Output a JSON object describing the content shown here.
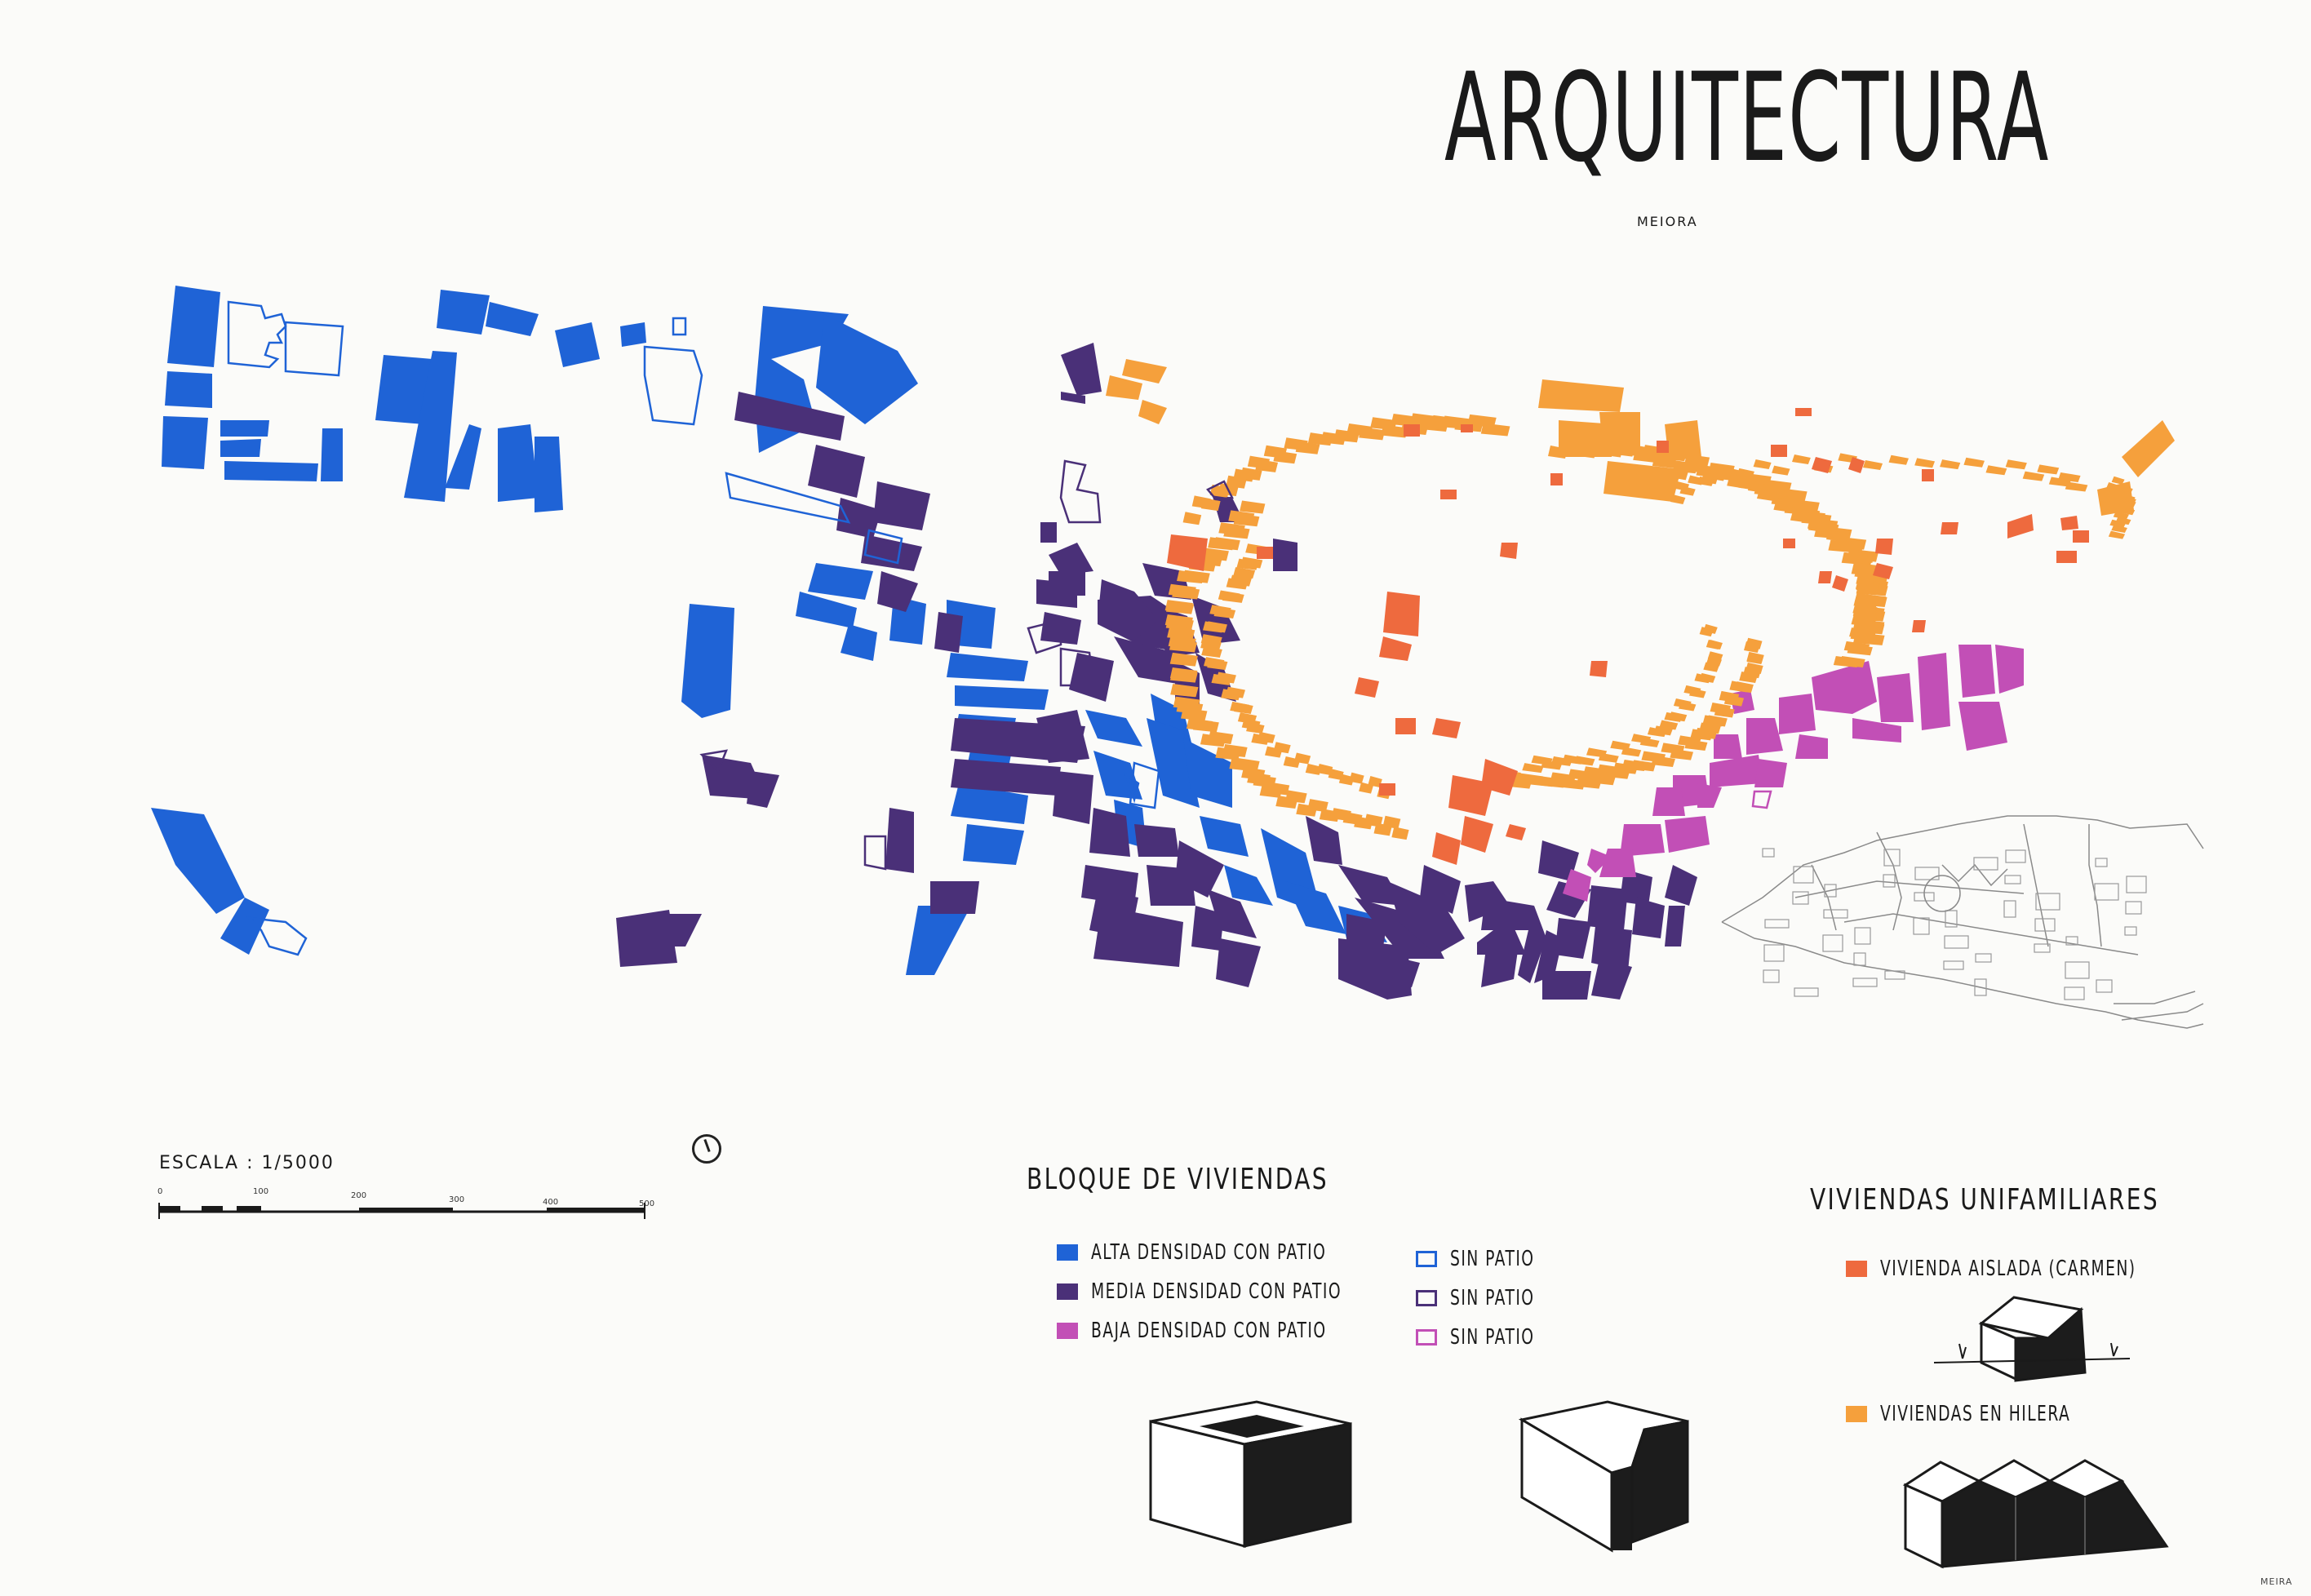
{
  "title": "ARQUITECTURA",
  "author": "MEIORA",
  "author_corner": "MEIRA",
  "scale": {
    "label": "ESCALA : 1/5000",
    "ticks": [
      "0",
      "100",
      "200",
      "300",
      "400",
      "500"
    ]
  },
  "colors": {
    "alta": "#1f63d6",
    "media": "#4a3078",
    "baja": "#c24fb6",
    "carmen": "#ee6a3e",
    "hilera": "#f5a03c",
    "ink": "#1a1a1a"
  },
  "legend_bloques": {
    "title": "BLOQUE DE VIVIENDAS",
    "con_patio": [
      {
        "label": "ALTA DENSIDAD CON PATIO",
        "color": "#1f63d6"
      },
      {
        "label": "MEDIA DENSIDAD CON PATIO",
        "color": "#4a3078"
      },
      {
        "label": "BAJA DENSIDAD CON PATIO",
        "color": "#c24fb6"
      }
    ],
    "sin_patio": [
      {
        "label": "SIN PATIO",
        "color": "#1f63d6"
      },
      {
        "label": "SIN PATIO",
        "color": "#4a3078"
      },
      {
        "label": "SIN PATIO",
        "color": "#c24fb6"
      }
    ]
  },
  "legend_unifamiliares": {
    "title": "VIVIENDAS UNIFAMILIARES",
    "items": [
      {
        "label": "VIVIENDA AISLADA (CARMEN)",
        "color": "#ee6a3e"
      },
      {
        "label": "VIVIENDAS EN HILERA",
        "color": "#f5a03c"
      }
    ]
  },
  "icons": [
    "patio-block-icon",
    "l-block-icon",
    "isolated-house-icon",
    "row-houses-icon",
    "north-arrow-icon"
  ]
}
